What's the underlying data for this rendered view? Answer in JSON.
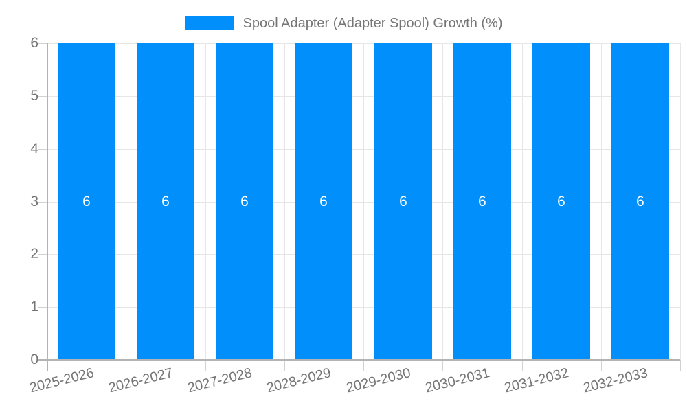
{
  "chart_data": {
    "type": "bar",
    "title": "Spool Adapter (Adapter Spool) Growth (%)",
    "categories": [
      "2025-2026",
      "2026-2027",
      "2027-2028",
      "2028-2029",
      "2029-2030",
      "2030-2031",
      "2031-2032",
      "2032-2033"
    ],
    "series": [
      {
        "name": "Spool Adapter (Adapter Spool) Growth (%)",
        "values": [
          6,
          6,
          6,
          6,
          6,
          6,
          6,
          6
        ]
      }
    ],
    "bar_labels": [
      "6",
      "6",
      "6",
      "6",
      "6",
      "6",
      "6",
      "6"
    ],
    "xlabel": "",
    "ylabel": "",
    "ylim": [
      0,
      6
    ],
    "yticks": [
      0,
      1,
      2,
      3,
      4,
      5,
      6
    ],
    "grid": true,
    "legend_position": "top",
    "colors": {
      "bar": "#008FFB",
      "bar_label": "#FFFFFF",
      "grid": "#E6E6E6",
      "tick": "#D2D2D2",
      "axis": "#B3B3B3",
      "text": "#757575",
      "background": "#FFFFFF"
    }
  }
}
